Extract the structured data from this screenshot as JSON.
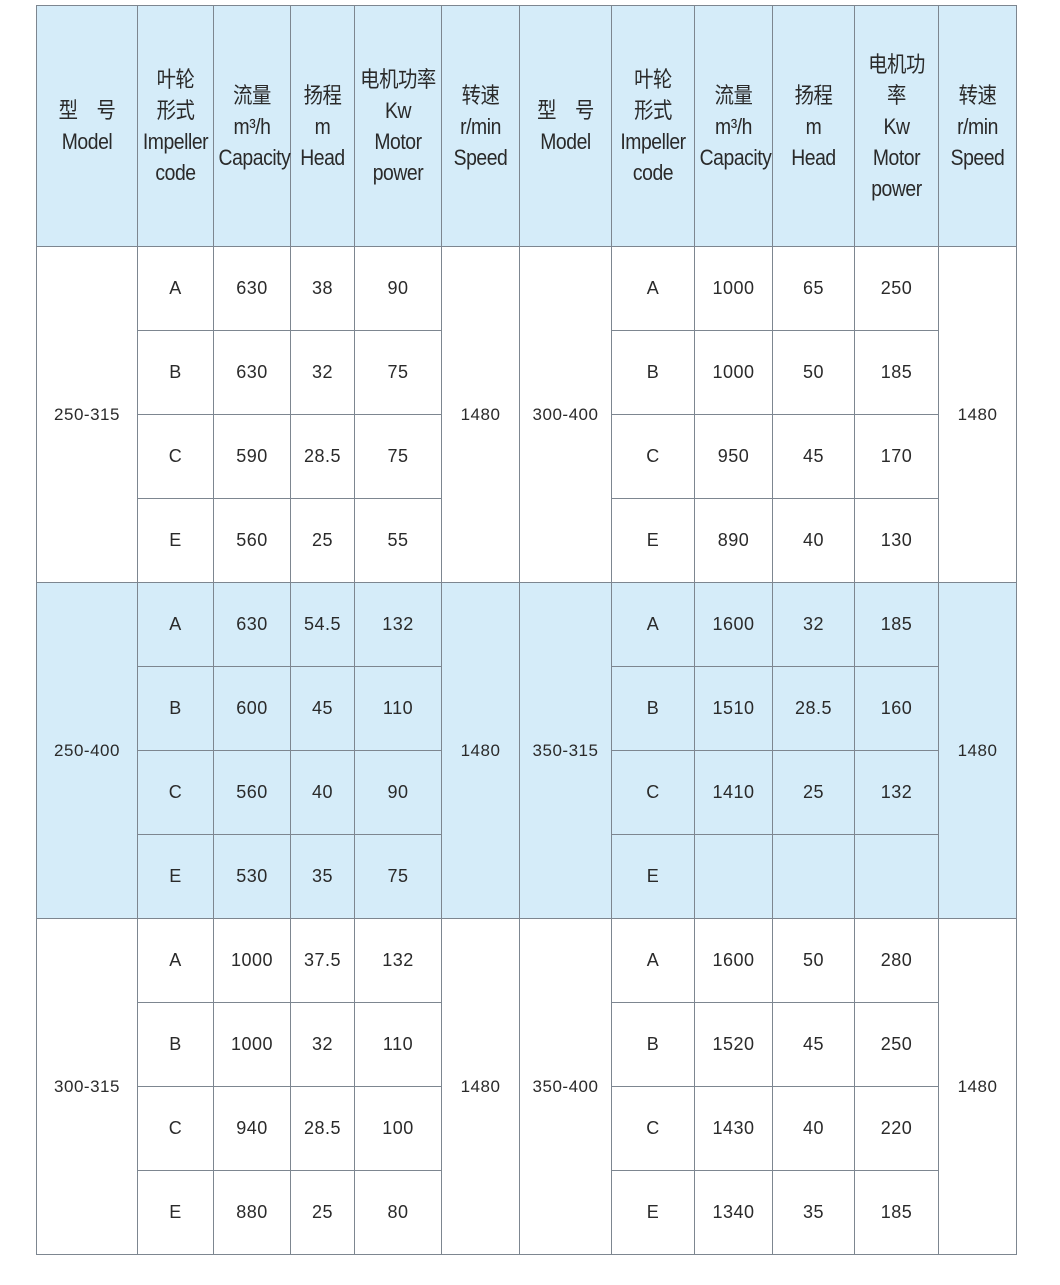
{
  "headers": [
    [
      "型　号",
      "Model"
    ],
    [
      "叶轮",
      "形式",
      "Impeller",
      "code"
    ],
    [
      "流量",
      "m³/h",
      "Capacity"
    ],
    [
      "扬程",
      "m",
      "Head"
    ],
    [
      "电机功率",
      "Kw",
      "Motor",
      "power"
    ],
    [
      "转速",
      "r/min",
      "Speed"
    ],
    [
      "型　号",
      "Model"
    ],
    [
      "叶轮",
      "形式",
      "Impeller",
      "code"
    ],
    [
      "流量",
      "m³/h",
      "Capacity"
    ],
    [
      "扬程",
      "m",
      "Head"
    ],
    [
      "电机功率",
      "Kw",
      "Motor",
      "power"
    ],
    [
      "转速",
      "r/min",
      "Speed"
    ]
  ],
  "colors": {
    "header_bg": "#d5ecf9",
    "band_bg": "#d5ecf9",
    "border": "#7d8690"
  },
  "groups": [
    {
      "highlighted": false,
      "left": {
        "model": "250-315",
        "speed": "1480",
        "rows": [
          {
            "code": "A",
            "capacity": "630",
            "head": "38",
            "power": "90"
          },
          {
            "code": "B",
            "capacity": "630",
            "head": "32",
            "power": "75"
          },
          {
            "code": "C",
            "capacity": "590",
            "head": "28.5",
            "power": "75"
          },
          {
            "code": "E",
            "capacity": "560",
            "head": "25",
            "power": "55"
          }
        ]
      },
      "right": {
        "model": "300-400",
        "speed": "1480",
        "rows": [
          {
            "code": "A",
            "capacity": "1000",
            "head": "65",
            "power": "250"
          },
          {
            "code": "B",
            "capacity": "1000",
            "head": "50",
            "power": "185"
          },
          {
            "code": "C",
            "capacity": "950",
            "head": "45",
            "power": "170"
          },
          {
            "code": "E",
            "capacity": "890",
            "head": "40",
            "power": "130"
          }
        ]
      }
    },
    {
      "highlighted": true,
      "left": {
        "model": "250-400",
        "speed": "1480",
        "rows": [
          {
            "code": "A",
            "capacity": "630",
            "head": "54.5",
            "power": "132"
          },
          {
            "code": "B",
            "capacity": "600",
            "head": "45",
            "power": "110"
          },
          {
            "code": "C",
            "capacity": "560",
            "head": "40",
            "power": "90"
          },
          {
            "code": "E",
            "capacity": "530",
            "head": "35",
            "power": "75"
          }
        ]
      },
      "right": {
        "model": "350-315",
        "speed": "1480",
        "rows": [
          {
            "code": "A",
            "capacity": "1600",
            "head": "32",
            "power": "185"
          },
          {
            "code": "B",
            "capacity": "1510",
            "head": "28.5",
            "power": "160"
          },
          {
            "code": "C",
            "capacity": "1410",
            "head": "25",
            "power": "132"
          },
          {
            "code": "E",
            "capacity": "",
            "head": "",
            "power": ""
          }
        ]
      }
    },
    {
      "highlighted": false,
      "left": {
        "model": "300-315",
        "speed": "1480",
        "rows": [
          {
            "code": "A",
            "capacity": "1000",
            "head": "37.5",
            "power": "132"
          },
          {
            "code": "B",
            "capacity": "1000",
            "head": "32",
            "power": "110"
          },
          {
            "code": "C",
            "capacity": "940",
            "head": "28.5",
            "power": "100"
          },
          {
            "code": "E",
            "capacity": "880",
            "head": "25",
            "power": "80"
          }
        ]
      },
      "right": {
        "model": "350-400",
        "speed": "1480",
        "rows": [
          {
            "code": "A",
            "capacity": "1600",
            "head": "50",
            "power": "280"
          },
          {
            "code": "B",
            "capacity": "1520",
            "head": "45",
            "power": "250"
          },
          {
            "code": "C",
            "capacity": "1430",
            "head": "40",
            "power": "220"
          },
          {
            "code": "E",
            "capacity": "1340",
            "head": "35",
            "power": "185"
          }
        ]
      }
    }
  ]
}
